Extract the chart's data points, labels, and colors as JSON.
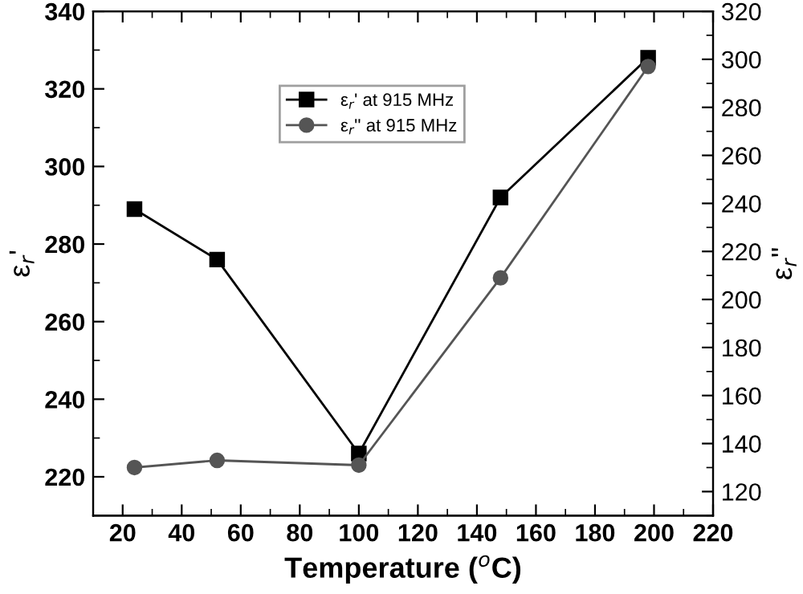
{
  "chart_data": {
    "type": "line",
    "xlabel": "Temperature ($^{o}$C)",
    "ylabel": "ε$_{r}$'",
    "y2label": "ε$_{r}$''",
    "x": [
      24,
      52,
      100,
      148,
      198
    ],
    "series": [
      {
        "name": "ε$_{r}$' at 915 MHz",
        "color": "#000000",
        "marker": "square",
        "values": [
          289,
          276,
          226,
          292,
          328
        ]
      },
      {
        "name": "ε$_{r}$'' at 915 MHz",
        "color": "#555555",
        "marker": "circle",
        "axis": "y2",
        "values": [
          130,
          133,
          131,
          209,
          297
        ]
      }
    ],
    "xlim": [
      10,
      220
    ],
    "xticks": [
      20,
      40,
      60,
      80,
      100,
      120,
      140,
      160,
      180,
      200,
      220
    ],
    "ylim": [
      210,
      340
    ],
    "yticks": [
      220,
      240,
      260,
      280,
      300,
      320,
      340
    ],
    "y2lim": [
      110,
      320
    ],
    "y2ticks": [
      120,
      140,
      160,
      180,
      200,
      220,
      240,
      260,
      280,
      300,
      320
    ],
    "legend": "top",
    "grid": false,
    "line_style": "solid"
  }
}
